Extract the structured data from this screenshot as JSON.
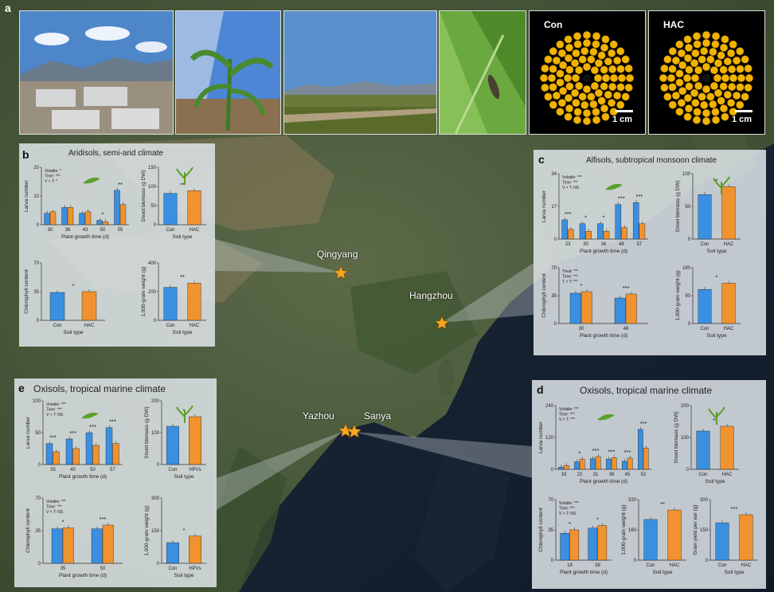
{
  "figure": {
    "panel_a_letter": "a",
    "panel_b_letter": "b",
    "panel_c_letter": "c",
    "panel_d_letter": "d",
    "panel_e_letter": "e"
  },
  "photos": {
    "con_label": "Con",
    "hac_label": "HAC",
    "scale_con": "1 cm",
    "scale_hac": "1 cm"
  },
  "sites": {
    "qingyang": "Qingyang",
    "hangzhou": "Hangzhou",
    "yazhou": "Yazhou",
    "sanya": "Sanya"
  },
  "panels": {
    "b": {
      "title": "Aridisols, semi-arid climate"
    },
    "c": {
      "title": "Alfisols, subtropical monsoon climate"
    },
    "d": {
      "title": "Oxisols, tropical marine climate"
    },
    "e": {
      "title": "Oxisols, tropical marine climate"
    }
  },
  "colors": {
    "con": "#3a8fe0",
    "hac": "#f0922f",
    "site_star": "#f5a623"
  },
  "chart_data": [
    {
      "id": "b-larva",
      "type": "bar",
      "categories": [
        "30",
        "36",
        "43",
        "50",
        "55"
      ],
      "series": [
        {
          "values": [
            4,
            6,
            4,
            1.5,
            12
          ]
        },
        {
          "values": [
            4.5,
            6,
            4.5,
            1,
            7
          ]
        }
      ],
      "ylabel": "Larva number",
      "xlabel": "Plant growth time (d)",
      "ylim": [
        0,
        20
      ],
      "yticks": [
        0,
        10,
        20
      ],
      "stats": [
        "Volatile: *",
        "Time: ***",
        "V × T: *"
      ],
      "sig": [
        "",
        "",
        "",
        "*",
        "**"
      ]
    },
    {
      "id": "b-shoot",
      "type": "bar",
      "categories": [
        "Con",
        "HAC"
      ],
      "values": [
        82,
        89
      ],
      "ylabel": "Shoot biomass (g DW)",
      "xlabel": "Soil type",
      "ylim": [
        0,
        150
      ],
      "yticks": [
        0,
        50,
        100,
        150
      ],
      "sig": [
        "**"
      ]
    },
    {
      "id": "b-chl",
      "type": "bar",
      "categories": [
        "Con",
        "HAC"
      ],
      "values": [
        34,
        35
      ],
      "ylabel": "Chlorophyll content",
      "xlabel": "Soil type",
      "ylim": [
        0,
        70
      ],
      "yticks": [
        0,
        35,
        70
      ],
      "sig": [
        "*"
      ]
    },
    {
      "id": "b-grain",
      "type": "bar",
      "categories": [
        "Con",
        "HAC"
      ],
      "values": [
        230,
        260
      ],
      "ylabel": "1,000-grain weight (g)",
      "xlabel": "Soil type",
      "ylim": [
        0,
        400
      ],
      "yticks": [
        0,
        200,
        400
      ],
      "sig": [
        "**"
      ]
    },
    {
      "id": "c-larva",
      "type": "bar",
      "categories": [
        "23",
        "30",
        "36",
        "48",
        "57"
      ],
      "series": [
        {
          "values": [
            10,
            8,
            8,
            18,
            19
          ]
        },
        {
          "values": [
            5,
            4,
            4,
            6,
            8
          ]
        }
      ],
      "ylabel": "Larva number",
      "xlabel": "Plant growth time (d)",
      "ylim": [
        0,
        34
      ],
      "yticks": [
        0,
        17,
        34
      ],
      "stats": [
        "Volatile: ***",
        "Time: ***",
        "V × T: NS"
      ],
      "sig": [
        "***",
        "*",
        "*",
        "***",
        "***"
      ]
    },
    {
      "id": "c-shoot",
      "type": "bar",
      "categories": [
        "Con",
        "HAC"
      ],
      "values": [
        68,
        80
      ],
      "ylabel": "Shoot biomass (g DW)",
      "xlabel": "Soil type",
      "ylim": [
        0,
        100
      ],
      "yticks": [
        0,
        50,
        100
      ],
      "sig": [
        "*"
      ]
    },
    {
      "id": "c-chl",
      "type": "bar",
      "categories": [
        "30",
        "48"
      ],
      "series": [
        {
          "values": [
            38,
            32
          ]
        },
        {
          "values": [
            40,
            37
          ]
        }
      ],
      "ylabel": "Chlorophyll content",
      "xlabel": "Plant growth time (d)",
      "ylim": [
        0,
        70
      ],
      "yticks": [
        0,
        35,
        70
      ],
      "stats": [
        "Treat: ***",
        "Time: ***",
        "T × T: ***"
      ],
      "sig": [
        "*",
        "***"
      ]
    },
    {
      "id": "c-grain",
      "type": "bar",
      "categories": [
        "Con",
        "HAC"
      ],
      "values": [
        110,
        130
      ],
      "ylabel": "1,000-grain weight (g)",
      "xlabel": "Soil type",
      "ylim": [
        0,
        180
      ],
      "yticks": [
        0,
        90,
        180
      ],
      "sig": [
        "*"
      ]
    },
    {
      "id": "d-larva",
      "type": "bar",
      "categories": [
        "18",
        "22",
        "31",
        "38",
        "45",
        "52"
      ],
      "series": [
        {
          "values": [
            8,
            28,
            40,
            38,
            30,
            150
          ]
        },
        {
          "values": [
            14,
            38,
            48,
            44,
            42,
            80
          ]
        }
      ],
      "ylabel": "Larva number",
      "xlabel": "Plant growth time (d)",
      "ylim": [
        0,
        240
      ],
      "yticks": [
        0,
        120,
        240
      ],
      "stats": [
        "Volatile: ***",
        "Time: ***",
        "V × T: ***"
      ],
      "sig": [
        "",
        "*",
        "***",
        "***",
        "***",
        "***"
      ]
    },
    {
      "id": "d-shoot",
      "type": "bar",
      "categories": [
        "Con",
        "HAC"
      ],
      "values": [
        120,
        135
      ],
      "ylabel": "Shoot biomass (g DW)",
      "xlabel": "Soil type",
      "ylim": [
        0,
        200
      ],
      "yticks": [
        0,
        100,
        200
      ],
      "sig": [
        "**"
      ]
    },
    {
      "id": "d-chl",
      "type": "bar",
      "categories": [
        "18",
        "38"
      ],
      "series": [
        {
          "values": [
            31,
            37
          ]
        },
        {
          "values": [
            35,
            40
          ]
        }
      ],
      "ylabel": "Chlorophyll content",
      "xlabel": "Plant growth time (d)",
      "ylim": [
        0,
        70
      ],
      "yticks": [
        0,
        35,
        70
      ],
      "stats": [
        "Volatile: ***",
        "Time: ***",
        "V × T: NS"
      ],
      "sig": [
        "*",
        "*"
      ]
    },
    {
      "id": "d-grain",
      "type": "bar",
      "categories": [
        "Con",
        "HAC"
      ],
      "values": [
        215,
        265
      ],
      "ylabel": "1,000-grain weight (g)",
      "xlabel": "Soil type",
      "ylim": [
        0,
        320
      ],
      "yticks": [
        0,
        160,
        320
      ],
      "sig": [
        "**"
      ]
    },
    {
      "id": "d-yield",
      "type": "bar",
      "categories": [
        "Con",
        "HAC"
      ],
      "values": [
        185,
        225
      ],
      "ylabel": "Grain yield per ear (g)",
      "xlabel": "Soil type",
      "ylim": [
        0,
        300
      ],
      "yticks": [
        0,
        150,
        300
      ],
      "sig": [
        "***"
      ]
    },
    {
      "id": "e-larva",
      "type": "bar",
      "categories": [
        "35",
        "40",
        "50",
        "57"
      ],
      "series": [
        {
          "values": [
            33,
            40,
            50,
            58
          ]
        },
        {
          "values": [
            20,
            25,
            30,
            33
          ]
        }
      ],
      "ylabel": "Larva number",
      "xlabel": "Plant growth time (d)",
      "ylim": [
        0,
        100
      ],
      "yticks": [
        0,
        50,
        100
      ],
      "stats": [
        "Volatile: ***",
        "Time: ***",
        "V × T: NS"
      ],
      "sig": [
        "***",
        "***",
        "***",
        "***"
      ]
    },
    {
      "id": "e-shoot",
      "type": "bar",
      "categories": [
        "Con",
        "HPVs"
      ],
      "values": [
        120,
        150
      ],
      "ylabel": "Shoot biomass (g DW)",
      "xlabel": "Soil type",
      "ylim": [
        0,
        200
      ],
      "yticks": [
        0,
        100,
        200
      ],
      "sig": [
        "*"
      ]
    },
    {
      "id": "e-chl",
      "type": "bar",
      "categories": [
        "35",
        "50"
      ],
      "series": [
        {
          "values": [
            37,
            37
          ]
        },
        {
          "values": [
            38,
            41
          ]
        }
      ],
      "ylabel": "Chlorophyll content",
      "xlabel": "Plant growth time (d)",
      "ylim": [
        0,
        70
      ],
      "yticks": [
        0,
        35,
        70
      ],
      "stats": [
        "Volatile: ***",
        "Time: ***",
        "V × T: NS"
      ],
      "sig": [
        "*",
        "***"
      ]
    },
    {
      "id": "e-grain",
      "type": "bar",
      "categories": [
        "Con",
        "HPVs"
      ],
      "values": [
        95,
        125
      ],
      "ylabel": "1,000-grain weight (g)",
      "xlabel": "Soil type",
      "ylim": [
        0,
        300
      ],
      "yticks": [
        0,
        150,
        300
      ],
      "sig": [
        "*"
      ]
    }
  ]
}
